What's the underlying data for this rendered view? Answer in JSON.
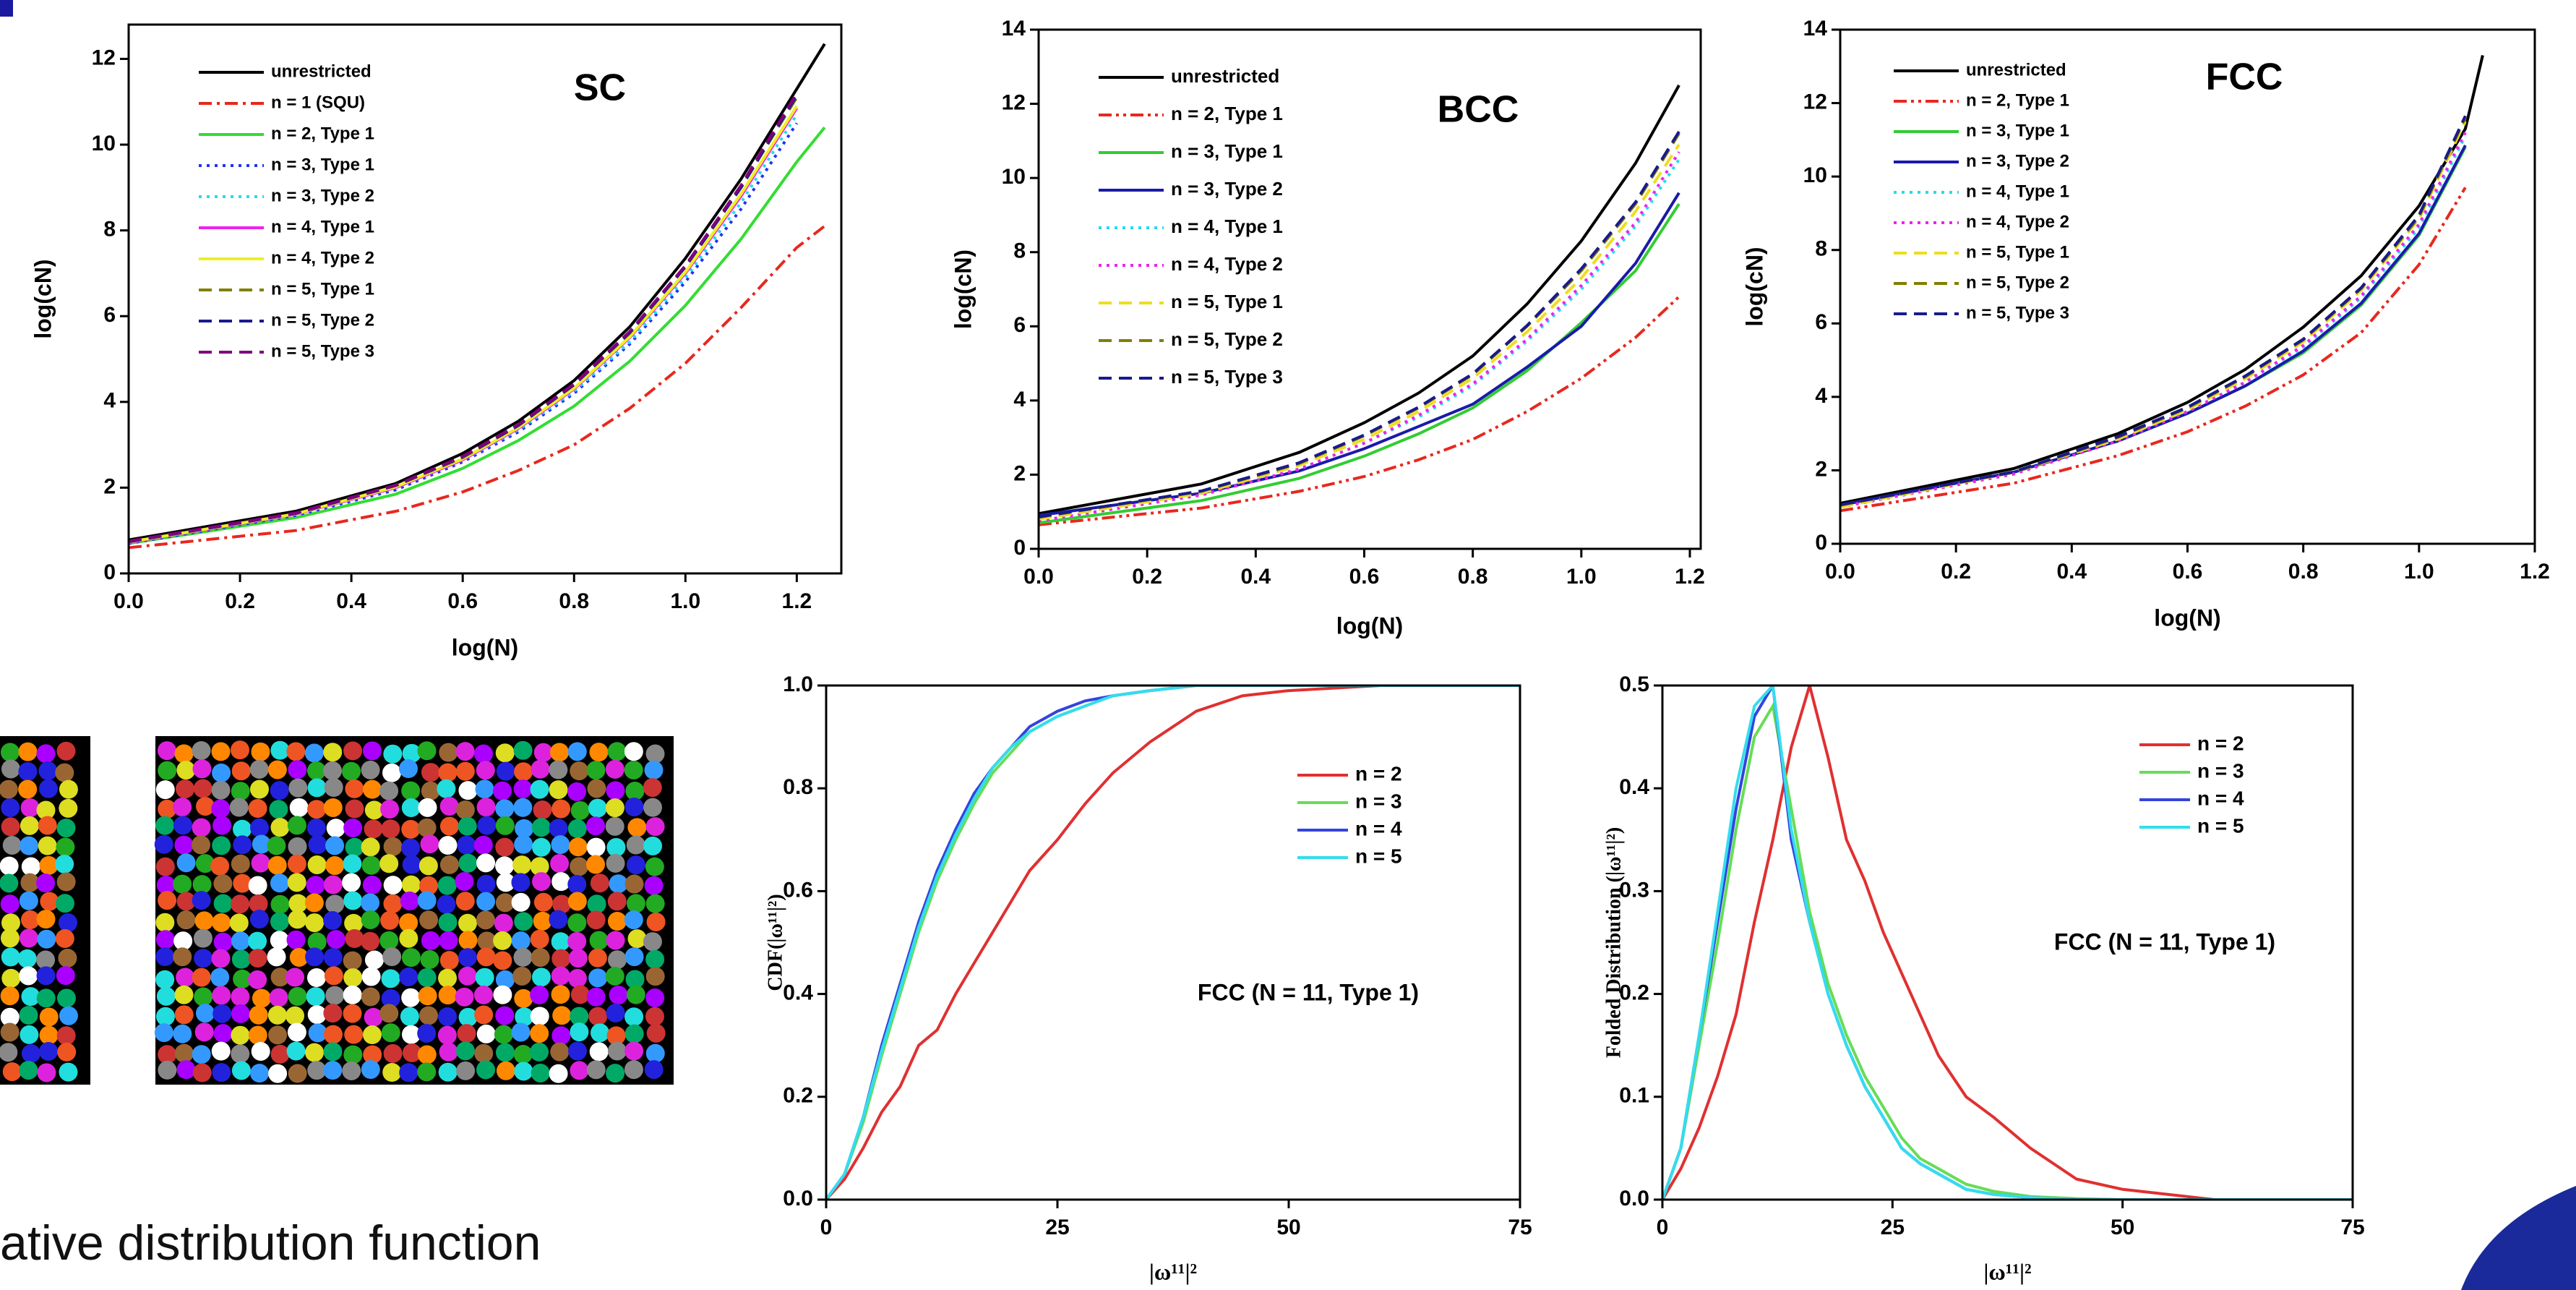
{
  "chart_data": [
    {
      "type": "line",
      "title": "SC",
      "xlabel": "log(N)",
      "ylabel": "log(cN)",
      "x": [
        0,
        0.3,
        0.48,
        0.6,
        0.7,
        0.8,
        0.9,
        1.0,
        1.1,
        1.2,
        1.25
      ],
      "xlim": [
        0,
        1.28
      ],
      "xticks": [
        {
          "value": 0,
          "label": "0.0"
        },
        0.2,
        0.4,
        0.6,
        0.8,
        {
          "value": 1,
          "label": "1.0"
        },
        1.2
      ],
      "ylim": [
        0,
        12.8
      ],
      "yticks": [
        0,
        2,
        4,
        6,
        8,
        10,
        12
      ],
      "legend": "upper left",
      "series": [
        {
          "name": "unrestricted",
          "color": "#000000",
          "style": "solid",
          "values": [
            0.78,
            1.45,
            2.1,
            2.8,
            3.55,
            4.5,
            5.75,
            7.35,
            9.2,
            11.3,
            12.35
          ]
        },
        {
          "name": "n = 1 (SQU)",
          "color": "#e8281e",
          "style": "dashdot",
          "values": [
            0.6,
            1.0,
            1.45,
            1.9,
            2.4,
            3.0,
            3.85,
            4.9,
            6.2,
            7.6,
            8.1
          ]
        },
        {
          "name": "n = 2, Type 1",
          "color": "#33dd33",
          "style": "solid",
          "values": [
            0.7,
            1.3,
            1.85,
            2.45,
            3.1,
            3.9,
            4.95,
            6.25,
            7.8,
            9.6,
            10.4
          ]
        },
        {
          "name": "n = 3, Type 1",
          "color": "#2233ee",
          "style": "dot",
          "values": [
            0.7,
            1.35,
            1.95,
            2.6,
            3.3,
            4.2,
            5.35,
            6.8,
            8.5,
            10.5,
            null
          ]
        },
        {
          "name": "n = 3, Type 2",
          "color": "#22ddee",
          "style": "dot",
          "values": [
            0.72,
            1.38,
            2.0,
            2.65,
            3.35,
            4.25,
            5.4,
            6.9,
            8.65,
            10.7,
            null
          ]
        },
        {
          "name": "n = 4, Type 1",
          "color": "#ee22ee",
          "style": "solid",
          "values": [
            0.72,
            1.38,
            2.0,
            2.65,
            3.38,
            4.3,
            5.5,
            7.0,
            8.8,
            10.85,
            null
          ]
        },
        {
          "name": "n = 4, Type 2",
          "color": "#eeee22",
          "style": "solid",
          "values": [
            0.73,
            1.39,
            2.02,
            2.67,
            3.4,
            4.32,
            5.52,
            7.03,
            8.85,
            10.9,
            null
          ]
        },
        {
          "name": "n = 5, Type 1",
          "color": "#808000",
          "style": "dash",
          "values": [
            0.74,
            1.4,
            2.05,
            2.7,
            3.45,
            4.4,
            5.6,
            7.15,
            9.0,
            11.1,
            null
          ]
        },
        {
          "name": "n = 5, Type 2",
          "color": "#1a1a8c",
          "style": "dash",
          "values": [
            0.74,
            1.4,
            2.05,
            2.72,
            3.45,
            4.4,
            5.62,
            7.15,
            9.0,
            11.15,
            null
          ]
        },
        {
          "name": "n = 5, Type 3",
          "color": "#800080",
          "style": "dash",
          "values": [
            0.75,
            1.41,
            2.06,
            2.73,
            3.47,
            4.42,
            5.64,
            7.18,
            9.05,
            11.2,
            null
          ]
        }
      ]
    },
    {
      "type": "line",
      "title": "BCC",
      "xlabel": "log(N)",
      "ylabel": "log(cN)",
      "x": [
        0,
        0.3,
        0.48,
        0.6,
        0.7,
        0.8,
        0.9,
        1.0,
        1.1,
        1.18
      ],
      "xlim": [
        0,
        1.22
      ],
      "xticks": [
        {
          "value": 0,
          "label": "0.0"
        },
        0.2,
        0.4,
        0.6,
        0.8,
        {
          "value": 1,
          "label": "1.0"
        },
        1.2
      ],
      "ylim": [
        0,
        14
      ],
      "yticks": [
        0,
        2,
        4,
        6,
        8,
        10,
        12,
        14
      ],
      "legend": "upper left",
      "series": [
        {
          "name": "unrestricted",
          "color": "#000000",
          "style": "solid",
          "values": [
            0.95,
            1.75,
            2.6,
            3.4,
            4.2,
            5.2,
            6.6,
            8.3,
            10.4,
            12.5
          ]
        },
        {
          "name": "n = 2, Type 1",
          "color": "#e8281e",
          "style": "dashdotdot",
          "values": [
            0.65,
            1.1,
            1.55,
            1.95,
            2.4,
            2.95,
            3.7,
            4.6,
            5.7,
            6.8
          ]
        },
        {
          "name": "n = 3, Type 1",
          "color": "#33cc33",
          "style": "solid",
          "values": [
            0.7,
            1.3,
            1.9,
            2.5,
            3.1,
            3.8,
            4.8,
            6.1,
            7.5,
            9.3
          ]
        },
        {
          "name": "n = 3, Type 2",
          "color": "#1a1aaa",
          "style": "solid",
          "values": [
            0.9,
            1.5,
            2.1,
            2.7,
            3.3,
            3.9,
            4.9,
            6.0,
            7.7,
            9.6
          ]
        },
        {
          "name": "n = 4, Type 1",
          "color": "#22ddee",
          "style": "dot",
          "values": [
            0.75,
            1.45,
            2.15,
            2.85,
            3.55,
            4.4,
            5.6,
            7.0,
            8.7,
            10.5
          ]
        },
        {
          "name": "n = 4, Type 2",
          "color": "#ee22ee",
          "style": "dot",
          "values": [
            0.75,
            1.45,
            2.15,
            2.85,
            3.6,
            4.45,
            5.65,
            7.1,
            8.8,
            10.7
          ]
        },
        {
          "name": "n = 5, Type 1",
          "color": "#eedd22",
          "style": "dash",
          "values": [
            0.8,
            1.5,
            2.25,
            2.95,
            3.7,
            4.6,
            5.85,
            7.3,
            9.1,
            10.9
          ]
        },
        {
          "name": "n = 5, Type 2",
          "color": "#808000",
          "style": "dash",
          "values": [
            0.85,
            1.55,
            2.3,
            3.05,
            3.8,
            4.7,
            6.0,
            7.5,
            9.3,
            11.2
          ]
        },
        {
          "name": "n = 5, Type 3",
          "color": "#1a1a8c",
          "style": "dash",
          "values": [
            0.86,
            1.56,
            2.32,
            3.07,
            3.82,
            4.72,
            6.02,
            7.55,
            9.35,
            11.25
          ]
        }
      ]
    },
    {
      "type": "line",
      "title": "FCC",
      "xlabel": "log(N)",
      "ylabel": "log(cN)",
      "x": [
        0,
        0.3,
        0.48,
        0.6,
        0.7,
        0.8,
        0.9,
        1.0,
        1.08,
        1.11
      ],
      "xlim": [
        0,
        1.2
      ],
      "xticks": [
        {
          "value": 0,
          "label": "0.0"
        },
        0.2,
        0.4,
        0.6,
        0.8,
        {
          "value": 1,
          "label": "1.0"
        },
        1.2
      ],
      "ylim": [
        0,
        14
      ],
      "yticks": [
        0,
        2,
        4,
        6,
        8,
        10,
        12,
        14
      ],
      "legend": "upper left",
      "series": [
        {
          "name": "unrestricted",
          "color": "#000000",
          "style": "solid",
          "values": [
            1.1,
            2.05,
            3.0,
            3.85,
            4.75,
            5.9,
            7.3,
            9.2,
            11.3,
            13.3
          ]
        },
        {
          "name": "n = 2, Type 1",
          "color": "#e8281e",
          "style": "dashdotdot",
          "values": [
            0.9,
            1.65,
            2.4,
            3.05,
            3.75,
            4.6,
            5.75,
            7.6,
            9.7,
            null
          ]
        },
        {
          "name": "n = 3, Type 1",
          "color": "#33cc33",
          "style": "solid",
          "values": [
            1.05,
            1.95,
            2.8,
            3.55,
            4.3,
            5.2,
            6.5,
            8.4,
            10.8,
            null
          ]
        },
        {
          "name": "n = 3, Type 2",
          "color": "#1a1aaa",
          "style": "solid",
          "values": [
            1.05,
            1.95,
            2.8,
            3.55,
            4.3,
            5.25,
            6.55,
            8.45,
            10.85,
            null
          ]
        },
        {
          "name": "n = 4, Type 1",
          "color": "#22ddee",
          "style": "dot",
          "values": [
            1.0,
            1.9,
            2.8,
            3.6,
            4.4,
            5.35,
            6.7,
            8.6,
            11.1,
            null
          ]
        },
        {
          "name": "n = 4, Type 2",
          "color": "#ee22ee",
          "style": "dot",
          "values": [
            1.0,
            1.9,
            2.8,
            3.6,
            4.4,
            5.4,
            6.75,
            8.7,
            11.2,
            null
          ]
        },
        {
          "name": "n = 5, Type 1",
          "color": "#eedd22",
          "style": "dash",
          "values": [
            1.0,
            1.95,
            2.85,
            3.65,
            4.5,
            5.5,
            6.9,
            8.85,
            11.5,
            null
          ]
        },
        {
          "name": "n = 5, Type 2",
          "color": "#808000",
          "style": "dash",
          "values": [
            1.05,
            1.95,
            2.9,
            3.7,
            4.55,
            5.55,
            6.95,
            8.9,
            11.6,
            null
          ]
        },
        {
          "name": "n = 5, Type 3",
          "color": "#1a1a8c",
          "style": "dash",
          "values": [
            1.06,
            1.96,
            2.92,
            3.72,
            4.57,
            5.57,
            6.97,
            8.95,
            11.65,
            null
          ]
        }
      ]
    },
    {
      "type": "line",
      "annotation": "FCC (N = 11, Type 1)",
      "xlabel": "|ω¹¹|²",
      "ylabel": "CDF(|ω¹¹|²)",
      "x": [
        0,
        2,
        4,
        6,
        8,
        10,
        12,
        14,
        16,
        18,
        20,
        22,
        25,
        28,
        31,
        35,
        40,
        45,
        50,
        60,
        75
      ],
      "xlim": [
        0,
        75
      ],
      "xticks": [
        0,
        25,
        50,
        75
      ],
      "ylim": [
        0,
        1
      ],
      "yticks": [
        {
          "value": 0,
          "label": "0.0"
        },
        0.2,
        0.4,
        0.6,
        0.8,
        {
          "value": 1,
          "label": "1.0"
        }
      ],
      "legend": "right",
      "series": [
        {
          "name": "n = 2",
          "color": "#e03030",
          "style": "solid",
          "values": [
            0,
            0.04,
            0.1,
            0.17,
            0.22,
            0.3,
            0.33,
            0.4,
            0.46,
            0.52,
            0.58,
            0.64,
            0.7,
            0.77,
            0.83,
            0.89,
            0.95,
            0.98,
            0.99,
            1.0,
            1.0
          ]
        },
        {
          "name": "n = 3",
          "color": "#66dd55",
          "style": "solid",
          "values": [
            0,
            0.05,
            0.15,
            0.28,
            0.4,
            0.52,
            0.62,
            0.7,
            0.77,
            0.83,
            0.87,
            0.91,
            0.94,
            0.96,
            0.98,
            0.99,
            1.0,
            1.0,
            1.0,
            1.0,
            1.0
          ]
        },
        {
          "name": "n = 4",
          "color": "#3344dd",
          "style": "solid",
          "values": [
            0,
            0.05,
            0.16,
            0.3,
            0.42,
            0.54,
            0.64,
            0.72,
            0.79,
            0.84,
            0.88,
            0.92,
            0.95,
            0.97,
            0.98,
            0.99,
            1.0,
            1.0,
            1.0,
            1.0,
            1.0
          ]
        },
        {
          "name": "n = 5",
          "color": "#33ddee",
          "style": "solid",
          "values": [
            0,
            0.05,
            0.16,
            0.29,
            0.41,
            0.53,
            0.63,
            0.71,
            0.78,
            0.84,
            0.88,
            0.91,
            0.94,
            0.96,
            0.98,
            0.99,
            1.0,
            1.0,
            1.0,
            1.0,
            1.0
          ]
        }
      ]
    },
    {
      "type": "line",
      "annotation": "FCC (N = 11, Type 1)",
      "xlabel": "|ω¹¹|²",
      "ylabel": "Folded Distribution (|ω¹¹|²)",
      "x": [
        0,
        2,
        4,
        6,
        8,
        10,
        12,
        14,
        16,
        18,
        20,
        22,
        24,
        26,
        28,
        30,
        33,
        36,
        40,
        45,
        50,
        60,
        75
      ],
      "xlim": [
        0,
        75
      ],
      "xticks": [
        0,
        25,
        50,
        75
      ],
      "ylim": [
        0,
        0.5
      ],
      "yticks": [
        {
          "value": 0,
          "label": "0.0"
        },
        0.1,
        0.2,
        0.3,
        0.4,
        0.5
      ],
      "legend": "upper right",
      "series": [
        {
          "name": "n = 2",
          "color": "#e03030",
          "style": "solid",
          "values": [
            0,
            0.03,
            0.07,
            0.12,
            0.18,
            0.27,
            0.35,
            0.44,
            0.5,
            0.43,
            0.35,
            0.31,
            0.26,
            0.22,
            0.18,
            0.14,
            0.1,
            0.08,
            0.05,
            0.02,
            0.01,
            0,
            0
          ]
        },
        {
          "name": "n = 3",
          "color": "#66dd55",
          "style": "solid",
          "values": [
            0,
            0.05,
            0.15,
            0.25,
            0.36,
            0.45,
            0.48,
            0.38,
            0.28,
            0.21,
            0.16,
            0.12,
            0.09,
            0.06,
            0.04,
            0.03,
            0.015,
            0.008,
            0.003,
            0.001,
            0,
            0,
            0
          ]
        },
        {
          "name": "n = 4",
          "color": "#3344dd",
          "style": "solid",
          "values": [
            0,
            0.05,
            0.16,
            0.27,
            0.38,
            0.47,
            0.5,
            0.35,
            0.27,
            0.2,
            0.15,
            0.11,
            0.08,
            0.05,
            0.035,
            0.025,
            0.01,
            0.005,
            0.002,
            0,
            0,
            0,
            0
          ]
        },
        {
          "name": "n = 5",
          "color": "#33ddee",
          "style": "solid",
          "values": [
            0,
            0.05,
            0.16,
            0.28,
            0.4,
            0.48,
            0.5,
            0.36,
            0.27,
            0.2,
            0.15,
            0.11,
            0.08,
            0.05,
            0.035,
            0.025,
            0.01,
            0.005,
            0.002,
            0,
            0,
            0,
            0
          ]
        }
      ]
    }
  ],
  "caption": "ative distribution function"
}
